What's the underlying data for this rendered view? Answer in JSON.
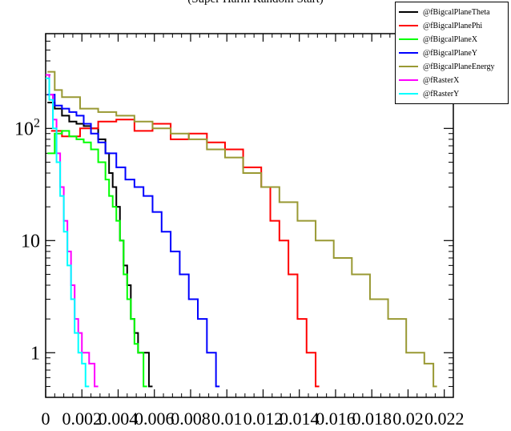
{
  "page": {
    "title": "(Super Harm Random Start)"
  },
  "chart_data": {
    "type": "histogram-step",
    "x_range": [
      0,
      0.0225
    ],
    "y_scale": "log",
    "y_range": [
      0.4,
      700
    ],
    "x_ticks": [
      0,
      0.002,
      0.004,
      0.006,
      0.008,
      0.01,
      0.012,
      0.014,
      0.016,
      0.018,
      0.02,
      0.022
    ],
    "x_tick_labels": [
      "0",
      "0.002",
      "0.004",
      "0.006",
      "0.008",
      "0.01",
      "0.012",
      "0.014",
      "0.016",
      "0.018",
      "0.02",
      "0.022"
    ],
    "y_ticks": [
      1,
      10,
      100
    ],
    "y_tick_labels": [
      {
        "base": "1",
        "exp": ""
      },
      {
        "base": "10",
        "exp": ""
      },
      {
        "base": "10",
        "exp": "2"
      }
    ],
    "legend_position": "top-right",
    "series": [
      {
        "name": "@fBigcalPlaneTheta",
        "color": "#000000",
        "points": [
          [
            0.0002,
            170
          ],
          [
            0.0006,
            150
          ],
          [
            0.001,
            130
          ],
          [
            0.0014,
            115
          ],
          [
            0.0018,
            110
          ],
          [
            0.0022,
            105
          ],
          [
            0.0026,
            100
          ],
          [
            0.003,
            80
          ],
          [
            0.0034,
            60
          ],
          [
            0.0036,
            40
          ],
          [
            0.0038,
            30
          ],
          [
            0.004,
            20
          ],
          [
            0.0042,
            10
          ],
          [
            0.0044,
            6
          ],
          [
            0.0046,
            4
          ],
          [
            0.0048,
            2
          ],
          [
            0.005,
            1.5
          ],
          [
            0.0052,
            1
          ],
          [
            0.0055,
            1
          ],
          [
            0.0058,
            0.5
          ]
        ]
      },
      {
        "name": "@fBigcalPlanePhi",
        "color": "#ff0000",
        "points": [
          [
            0.0004,
            95
          ],
          [
            0.001,
            85
          ],
          [
            0.002,
            100
          ],
          [
            0.003,
            115
          ],
          [
            0.004,
            120
          ],
          [
            0.005,
            95
          ],
          [
            0.006,
            110
          ],
          [
            0.007,
            80
          ],
          [
            0.008,
            90
          ],
          [
            0.009,
            75
          ],
          [
            0.01,
            65
          ],
          [
            0.011,
            45
          ],
          [
            0.012,
            30
          ],
          [
            0.0125,
            15
          ],
          [
            0.013,
            10
          ],
          [
            0.0135,
            5
          ],
          [
            0.014,
            2
          ],
          [
            0.0145,
            1
          ],
          [
            0.015,
            0.5
          ]
        ]
      },
      {
        "name": "@fBigcalPlaneX",
        "color": "#00ff00",
        "points": [
          [
            0.0002,
            60
          ],
          [
            0.0006,
            90
          ],
          [
            0.001,
            95
          ],
          [
            0.0014,
            85
          ],
          [
            0.0018,
            80
          ],
          [
            0.0022,
            75
          ],
          [
            0.0026,
            65
          ],
          [
            0.003,
            50
          ],
          [
            0.0034,
            35
          ],
          [
            0.0036,
            25
          ],
          [
            0.0038,
            20
          ],
          [
            0.004,
            15
          ],
          [
            0.0042,
            10
          ],
          [
            0.0044,
            5
          ],
          [
            0.0046,
            3
          ],
          [
            0.0048,
            2
          ],
          [
            0.005,
            1.2
          ],
          [
            0.0052,
            1
          ],
          [
            0.0055,
            0.5
          ]
        ]
      },
      {
        "name": "@fBigcalPlaneY",
        "color": "#0000ff",
        "points": [
          [
            0.0002,
            200
          ],
          [
            0.0006,
            160
          ],
          [
            0.001,
            150
          ],
          [
            0.0014,
            140
          ],
          [
            0.0018,
            130
          ],
          [
            0.0022,
            110
          ],
          [
            0.0026,
            90
          ],
          [
            0.003,
            75
          ],
          [
            0.0034,
            60
          ],
          [
            0.004,
            45
          ],
          [
            0.0045,
            35
          ],
          [
            0.005,
            30
          ],
          [
            0.0055,
            25
          ],
          [
            0.006,
            18
          ],
          [
            0.0065,
            12
          ],
          [
            0.007,
            8
          ],
          [
            0.0075,
            5
          ],
          [
            0.008,
            3
          ],
          [
            0.0085,
            2
          ],
          [
            0.009,
            1
          ],
          [
            0.0095,
            0.5
          ]
        ]
      },
      {
        "name": "@fBigcalPlaneEnergy",
        "color": "#999933",
        "points": [
          [
            0.0002,
            320
          ],
          [
            0.0006,
            220
          ],
          [
            0.001,
            190
          ],
          [
            0.002,
            150
          ],
          [
            0.003,
            140
          ],
          [
            0.004,
            130
          ],
          [
            0.005,
            115
          ],
          [
            0.006,
            100
          ],
          [
            0.007,
            90
          ],
          [
            0.008,
            80
          ],
          [
            0.009,
            65
          ],
          [
            0.01,
            55
          ],
          [
            0.011,
            40
          ],
          [
            0.012,
            30
          ],
          [
            0.013,
            22
          ],
          [
            0.014,
            15
          ],
          [
            0.015,
            10
          ],
          [
            0.016,
            7
          ],
          [
            0.017,
            5
          ],
          [
            0.018,
            3
          ],
          [
            0.019,
            2
          ],
          [
            0.02,
            1
          ],
          [
            0.021,
            0.8
          ],
          [
            0.0215,
            0.5
          ]
        ]
      },
      {
        "name": "@fRasterX",
        "color": "#ff00ff",
        "points": [
          [
            0.0001,
            300
          ],
          [
            0.0003,
            200
          ],
          [
            0.0005,
            120
          ],
          [
            0.0007,
            60
          ],
          [
            0.0009,
            30
          ],
          [
            0.0011,
            15
          ],
          [
            0.0013,
            8
          ],
          [
            0.0015,
            4
          ],
          [
            0.0017,
            2
          ],
          [
            0.0019,
            1.5
          ],
          [
            0.0021,
            1
          ],
          [
            0.0023,
            1
          ],
          [
            0.0025,
            0.8
          ],
          [
            0.0028,
            0.5
          ]
        ]
      },
      {
        "name": "@fRasterY",
        "color": "#00ffff",
        "points": [
          [
            0.0001,
            280
          ],
          [
            0.0003,
            180
          ],
          [
            0.0005,
            100
          ],
          [
            0.0007,
            50
          ],
          [
            0.0009,
            25
          ],
          [
            0.0011,
            12
          ],
          [
            0.0013,
            6
          ],
          [
            0.0015,
            3
          ],
          [
            0.0017,
            1.5
          ],
          [
            0.0019,
            1
          ],
          [
            0.0021,
            0.8
          ],
          [
            0.0023,
            0.5
          ]
        ]
      }
    ]
  }
}
